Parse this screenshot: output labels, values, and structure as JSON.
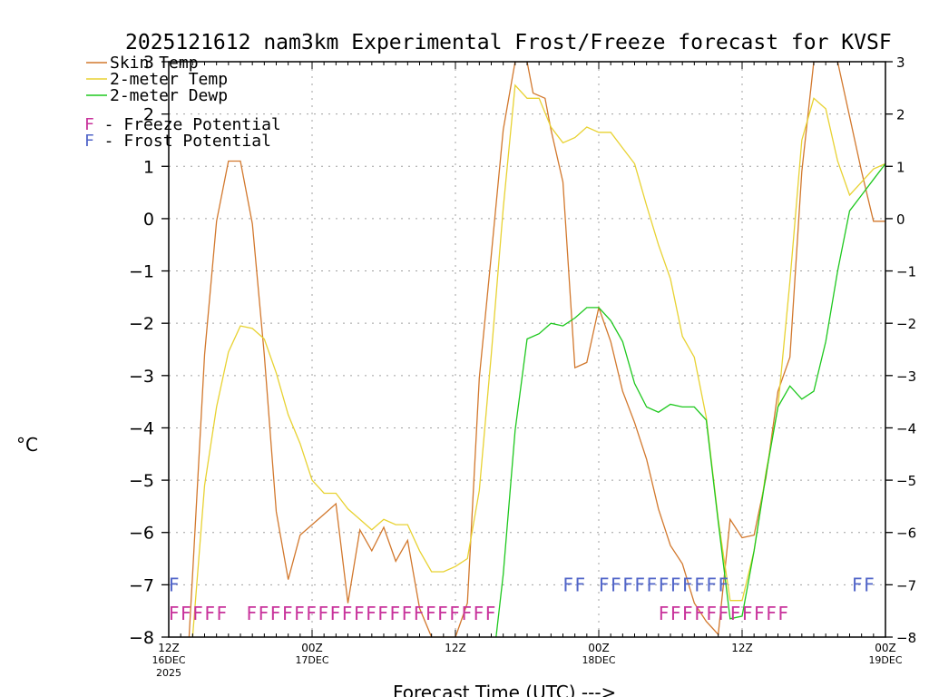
{
  "chart_data": {
    "type": "line",
    "title": "2025121612 nam3km Experimental Frost/Freeze forecast for KVSF",
    "ylabel": "°C",
    "xlabel": "Forecast Time (UTC) --->",
    "ylim": [
      -8,
      3
    ],
    "y_ticks": [
      "3",
      "2",
      "1",
      "0",
      "−1",
      "−2",
      "−3",
      "−4",
      "−5",
      "−6",
      "−7",
      "−8"
    ],
    "x_range_hours": [
      0,
      60
    ],
    "x_ticks": [
      {
        "hour": 0,
        "label": "12Z",
        "sub": "16DEC",
        "sub2": "2025"
      },
      {
        "hour": 12,
        "label": "00Z",
        "sub": "17DEC",
        "sub2": ""
      },
      {
        "hour": 24,
        "label": "12Z",
        "sub": "",
        "sub2": ""
      },
      {
        "hour": 36,
        "label": "00Z",
        "sub": "18DEC",
        "sub2": ""
      },
      {
        "hour": 48,
        "label": "12Z",
        "sub": "",
        "sub2": ""
      },
      {
        "hour": 60,
        "label": "00Z",
        "sub": "19DEC",
        "sub2": ""
      }
    ],
    "grid": true,
    "colors": {
      "skin": "#d2782d",
      "temp": "#e8d232",
      "dewp": "#1ec81e",
      "freeze": "#c8329b",
      "frost": "#5064c8",
      "axis": "#000000",
      "grid": "#a0a0a0"
    },
    "legend": [
      {
        "label": "Skin Temp",
        "color": "#d2782d",
        "kind": "line"
      },
      {
        "label": "2-meter Temp",
        "color": "#e8d232",
        "kind": "line"
      },
      {
        "label": "2-meter Dewp",
        "color": "#1ec81e",
        "kind": "line"
      },
      {
        "label": "F - Freeze Potential",
        "color": "#c8329b",
        "kind": "text"
      },
      {
        "label": "F - Frost Potential",
        "color": "#5064c8",
        "kind": "text"
      }
    ],
    "series": [
      {
        "name": "Skin Temp",
        "color": "#d2782d",
        "points": [
          [
            1.7,
            -8.0
          ],
          [
            2,
            -6.8
          ],
          [
            3,
            -2.6
          ],
          [
            4,
            -0.05
          ],
          [
            5,
            1.1
          ],
          [
            6,
            1.1
          ],
          [
            7,
            -0.1
          ],
          [
            8,
            -2.6
          ],
          [
            9,
            -5.6
          ],
          [
            10,
            -6.9
          ],
          [
            11,
            -6.05
          ],
          [
            12,
            -5.85
          ],
          [
            13,
            -5.65
          ],
          [
            14,
            -5.45
          ],
          [
            15,
            -7.35
          ],
          [
            16,
            -5.95
          ],
          [
            17,
            -6.35
          ],
          [
            18,
            -5.9
          ],
          [
            19,
            -6.55
          ],
          [
            20,
            -6.15
          ],
          [
            21,
            -7.45
          ],
          [
            22,
            -8.0
          ],
          [
            24,
            -8.0
          ],
          [
            25,
            -7.35
          ],
          [
            26,
            -3.05
          ],
          [
            27,
            -0.7
          ],
          [
            28,
            1.7
          ],
          [
            29,
            3.0
          ],
          [
            30,
            3.0
          ],
          [
            30.5,
            2.4
          ],
          [
            31.5,
            2.3
          ],
          [
            32,
            1.7
          ],
          [
            33,
            0.7
          ],
          [
            34,
            -2.85
          ],
          [
            35,
            -2.75
          ],
          [
            36,
            -1.7
          ],
          [
            37,
            -2.35
          ],
          [
            38,
            -3.3
          ],
          [
            39,
            -3.9
          ],
          [
            40,
            -4.6
          ],
          [
            41,
            -5.55
          ],
          [
            42,
            -6.25
          ],
          [
            43,
            -6.6
          ],
          [
            44,
            -7.35
          ],
          [
            45,
            -7.7
          ],
          [
            46,
            -7.95
          ],
          [
            47,
            -5.75
          ],
          [
            48,
            -6.1
          ],
          [
            49,
            -6.05
          ],
          [
            50,
            -4.95
          ],
          [
            51,
            -3.3
          ],
          [
            52,
            -2.65
          ],
          [
            53,
            0.9
          ],
          [
            54,
            3.0
          ],
          [
            56,
            3.0
          ],
          [
            57,
            1.95
          ],
          [
            58,
            0.9
          ],
          [
            59,
            -0.05
          ],
          [
            60,
            -0.05
          ],
          [
            61,
            0.15
          ],
          [
            62,
            0.15
          ]
        ]
      },
      {
        "name": "2-meter Temp",
        "color": "#e8d232",
        "points": [
          [
            2,
            -8.0
          ],
          [
            3,
            -5.1
          ],
          [
            4,
            -3.6
          ],
          [
            5,
            -2.55
          ],
          [
            6,
            -2.05
          ],
          [
            7,
            -2.1
          ],
          [
            8,
            -2.3
          ],
          [
            9,
            -2.95
          ],
          [
            10,
            -3.75
          ],
          [
            11,
            -4.3
          ],
          [
            12,
            -5.0
          ],
          [
            13,
            -5.25
          ],
          [
            14,
            -5.25
          ],
          [
            15,
            -5.55
          ],
          [
            16,
            -5.75
          ],
          [
            17,
            -5.95
          ],
          [
            18,
            -5.75
          ],
          [
            19,
            -5.85
          ],
          [
            20,
            -5.85
          ],
          [
            21,
            -6.35
          ],
          [
            22,
            -6.75
          ],
          [
            23,
            -6.75
          ],
          [
            24,
            -6.65
          ],
          [
            25,
            -6.5
          ],
          [
            26,
            -5.2
          ],
          [
            27,
            -2.6
          ],
          [
            28,
            0.2
          ],
          [
            29,
            2.55
          ],
          [
            30,
            2.3
          ],
          [
            31,
            2.3
          ],
          [
            32,
            1.75
          ],
          [
            33,
            1.45
          ],
          [
            34,
            1.55
          ],
          [
            35,
            1.75
          ],
          [
            36,
            1.65
          ],
          [
            37,
            1.65
          ],
          [
            38,
            1.35
          ],
          [
            39,
            1.05
          ],
          [
            40,
            0.25
          ],
          [
            41,
            -0.5
          ],
          [
            42,
            -1.15
          ],
          [
            43,
            -2.25
          ],
          [
            44,
            -2.65
          ],
          [
            45,
            -3.8
          ],
          [
            46,
            -5.75
          ],
          [
            47,
            -7.3
          ],
          [
            48,
            -7.3
          ],
          [
            49,
            -6.35
          ],
          [
            50,
            -4.85
          ],
          [
            51,
            -3.6
          ],
          [
            52,
            -1.2
          ],
          [
            53,
            1.5
          ],
          [
            54,
            2.3
          ],
          [
            55,
            2.1
          ],
          [
            56,
            1.1
          ],
          [
            57,
            0.45
          ],
          [
            58,
            0.7
          ],
          [
            59,
            0.95
          ],
          [
            60,
            1.05
          ]
        ]
      },
      {
        "name": "2-meter Dewp",
        "color": "#1ec81e",
        "points": [
          [
            27.4,
            -8.0
          ],
          [
            28,
            -6.8
          ],
          [
            29,
            -4.05
          ],
          [
            30,
            -2.3
          ],
          [
            31,
            -2.2
          ],
          [
            32,
            -2.0
          ],
          [
            33,
            -2.05
          ],
          [
            34,
            -1.9
          ],
          [
            35,
            -1.7
          ],
          [
            36,
            -1.7
          ],
          [
            37,
            -1.95
          ],
          [
            38,
            -2.35
          ],
          [
            39,
            -3.15
          ],
          [
            40,
            -3.6
          ],
          [
            41,
            -3.7
          ],
          [
            42,
            -3.55
          ],
          [
            43,
            -3.6
          ],
          [
            44,
            -3.6
          ],
          [
            45,
            -3.85
          ],
          [
            46,
            -5.8
          ],
          [
            47,
            -7.65
          ],
          [
            48,
            -7.6
          ],
          [
            49,
            -6.35
          ],
          [
            50,
            -4.9
          ],
          [
            51,
            -3.6
          ],
          [
            52,
            -3.2
          ],
          [
            53,
            -3.45
          ],
          [
            54,
            -3.3
          ],
          [
            55,
            -2.35
          ],
          [
            56,
            -1.0
          ],
          [
            57,
            0.15
          ],
          [
            58,
            0.45
          ],
          [
            59,
            0.75
          ],
          [
            60,
            1.05
          ]
        ]
      }
    ],
    "freeze_text": [
      {
        "x0": 0,
        "count": 5
      },
      {
        "x0": 6.5,
        "count": 21
      },
      {
        "x0": 41,
        "count": 11
      }
    ],
    "frost_text": [
      {
        "x0": 0,
        "count": 1
      },
      {
        "x0": 33,
        "count": 2
      },
      {
        "x0": 36,
        "count": 11
      },
      {
        "x0": 57.2,
        "count": 2
      }
    ]
  }
}
